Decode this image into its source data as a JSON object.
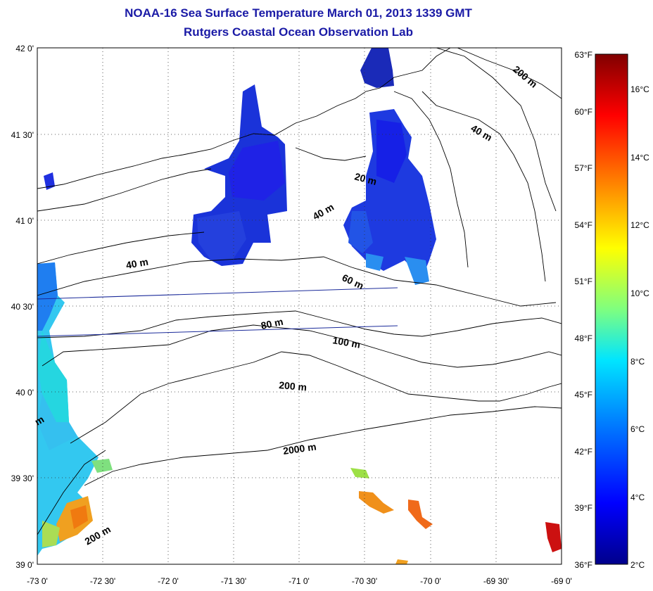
{
  "title": {
    "line1": "NOAA-16 Sea Surface Temperature March 01, 2013 1339 GMT",
    "line2": "Rutgers Coastal Ocean Observation Lab"
  },
  "axes": {
    "lat_labels": [
      "42 0'",
      "41 30'",
      "41 0'",
      "40 30'",
      "40 0'",
      "39 30'",
      "39 0'"
    ],
    "lon_labels": [
      "-73 0'",
      "-72 30'",
      "-72 0'",
      "-71 30'",
      "-71 0'",
      "-70 30'",
      "-70 0'",
      "-69 30'",
      "-69 0'"
    ]
  },
  "contours": [
    "200 m",
    "40 m",
    "20 m",
    "40 m",
    "40 m",
    "60 m",
    "80 m",
    "100 m",
    "200 m",
    "2000 m",
    "200 m",
    "m"
  ],
  "colorbar": {
    "fahrenheit": [
      "63°F",
      "60°F",
      "57°F",
      "54°F",
      "51°F",
      "48°F",
      "45°F",
      "42°F",
      "39°F",
      "36°F"
    ],
    "celsius": [
      "16°C",
      "14°C",
      "12°C",
      "10°C",
      "8°C",
      "6°C",
      "4°C",
      "2°C"
    ],
    "colors": [
      "#00008b",
      "#0000ff",
      "#0080ff",
      "#00e5ff",
      "#7fff7f",
      "#ffff00",
      "#ff8000",
      "#ff0000",
      "#800000"
    ]
  }
}
